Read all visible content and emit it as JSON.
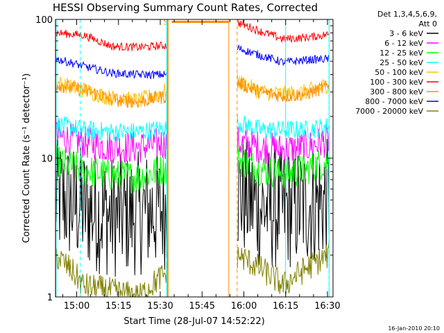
{
  "chart_data": {
    "type": "line",
    "title": "HESSI Observing Summary Count Rates, Corrected",
    "xlabel": "Start Time (28-Jul-07 14:52:22)",
    "ylabel": "Corrected Count Rate (s⁻¹ detector⁻¹)",
    "y_scale": "log",
    "ylim": [
      1,
      100
    ],
    "xlim_minutes": [
      892.4,
      992
    ],
    "x_ticks": [
      {
        "label": "15:00",
        "minutes": 900
      },
      {
        "label": "15:15",
        "minutes": 915
      },
      {
        "label": "15:30",
        "minutes": 930
      },
      {
        "label": "15:45",
        "minutes": 945
      },
      {
        "label": "16:00",
        "minutes": 960
      },
      {
        "label": "16:15",
        "minutes": 975
      },
      {
        "label": "16:30",
        "minutes": 990
      }
    ],
    "y_ticks": [
      {
        "label": "1",
        "value": 1
      },
      {
        "label": "10",
        "value": 10
      },
      {
        "label": "100",
        "value": 100
      }
    ],
    "legend_header": [
      "Det 1,3,4,5,6,9,",
      "Att 0"
    ],
    "legend_placement": "right",
    "series": [
      {
        "name": "3 - 6 keV",
        "color": "#000000",
        "seg1": [
          5.2,
          4.4,
          3.8,
          4.0,
          4.4
        ],
        "seg2": [
          5.6,
          4.4,
          4.3,
          4.6,
          5.0
        ],
        "spread": 0.45
      },
      {
        "name": "6 - 12 keV",
        "color": "#ff00ff",
        "seg1": [
          14.5,
          13.0,
          12.0,
          12.0,
          13.0
        ],
        "seg2": [
          13.0,
          12.0,
          11.5,
          12.0,
          13.5
        ],
        "spread": 0.12
      },
      {
        "name": "12 - 25 keV",
        "color": "#00ff00",
        "seg1": [
          9.5,
          8.2,
          7.5,
          7.3,
          8.5
        ],
        "seg2": [
          9.8,
          8.3,
          7.8,
          8.3,
          9.5
        ],
        "spread": 0.12
      },
      {
        "name": "25 - 50 keV",
        "color": "#00ffff",
        "seg1": [
          17.5,
          16.0,
          15.5,
          15.5,
          16.5
        ],
        "seg2": [
          18.0,
          16.0,
          16.0,
          16.0,
          17.0
        ],
        "spread": 0.07
      },
      {
        "name": "50 - 100 keV",
        "color": "#ffc000",
        "seg1": [
          35.0,
          31.0,
          27.0,
          26.0,
          31.0
        ],
        "seg2": [
          36.0,
          30.0,
          29.0,
          30.0,
          34.0
        ],
        "spread": 0.06
      },
      {
        "name": "100 - 300 keV",
        "color": "#ff0000",
        "seg1": [
          80.0,
          77.0,
          64.0,
          63.0,
          65.0
        ],
        "seg2": [
          95.0,
          82.0,
          72.0,
          74.0,
          78.0
        ],
        "spread": 0.03
      },
      {
        "name": "300 - 800 keV",
        "color": "#ff8c00",
        "seg1": [
          34.0,
          31.0,
          26.5,
          25.5,
          28.0
        ],
        "seg2": [
          35.0,
          30.0,
          28.0,
          29.0,
          33.0
        ],
        "spread": 0.05
      },
      {
        "name": "800 - 7000 keV",
        "color": "#0000ff",
        "seg1": [
          52.0,
          46.0,
          41.0,
          40.0,
          40.0
        ],
        "seg2": [
          62.0,
          55.0,
          49.0,
          51.0,
          52.0
        ],
        "spread": 0.03
      },
      {
        "name": "7000 - 20000 keV",
        "color": "#808000",
        "seg1": [
          2.0,
          1.2,
          1.1,
          1.0,
          1.5
        ],
        "seg2": [
          2.0,
          1.6,
          1.2,
          1.6,
          2.0
        ],
        "spread": 0.1
      }
    ],
    "segments_minutes": [
      [
        892.4,
        932.6
      ],
      [
        957.7,
        990.6
      ]
    ],
    "saa_flag": {
      "label": "S",
      "start_minutes": 933.6,
      "end_minutes": 954.6,
      "value": 96,
      "color": "#ff8c00"
    },
    "eclipse_lines_minutes": [
      892.6,
      932.3,
      975.0,
      990.6
    ],
    "eclipse_color": "#00ffff",
    "attenuator_lines_minutes": [
      932.7,
      954.6,
      957.6
    ],
    "attenuator_color": "#ff8c00",
    "dashed_marker_minutes": [
      901.3,
      990.6
    ],
    "dashed_marker_color": "#00ffff"
  },
  "footer_date": "16-Jan-2010 20:10"
}
